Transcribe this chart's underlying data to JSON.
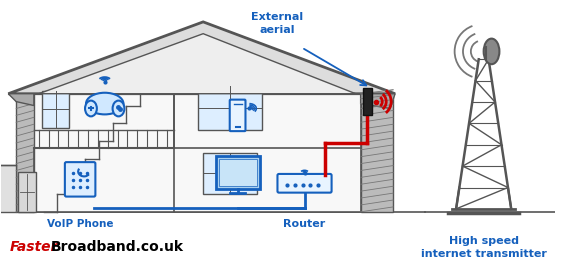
{
  "brand_faster": "Faster",
  "brand_rest": "Broadband.co.uk",
  "brand_faster_color": "#cc0000",
  "brand_rest_color": "#000000",
  "label_external_aerial": "External\naerial",
  "label_voip": "VoIP Phone",
  "label_router": "Router",
  "label_transmitter": "High speed\ninternet transmitter",
  "blue_color": "#1560bd",
  "red_color": "#cc0000",
  "dark_color": "#555555",
  "darker_color": "#222222",
  "hatch_color": "#888888",
  "bg_color": "#ffffff",
  "house_fill": "#f8f8f8",
  "wall_fill": "#cccccc",
  "win_fill": "#ddeeff"
}
